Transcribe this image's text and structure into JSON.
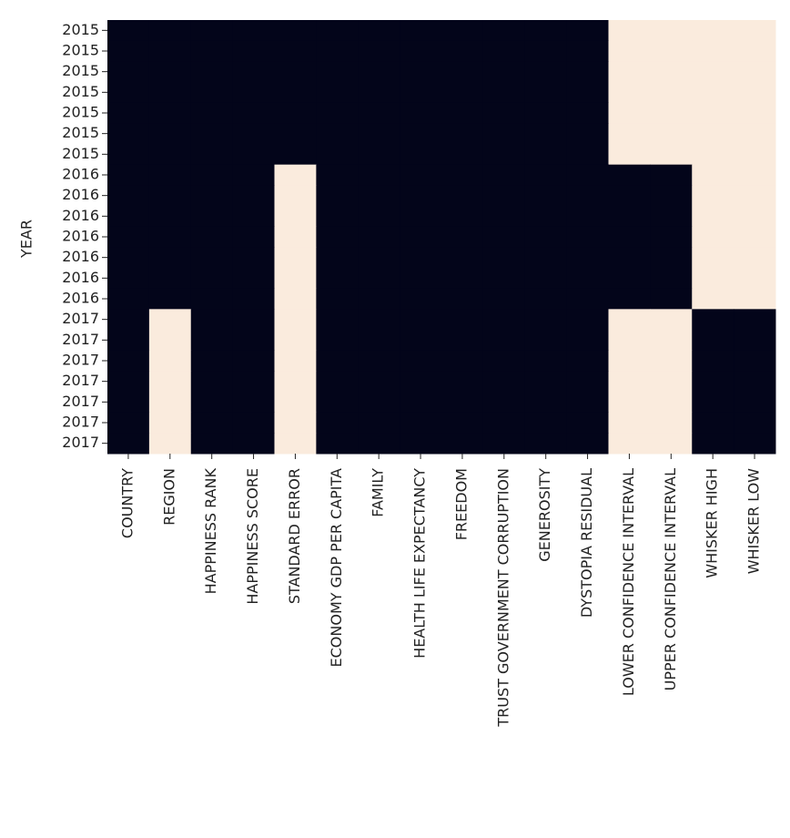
{
  "chart_data": {
    "type": "heatmap",
    "y_label": "YEAR",
    "rows": [
      "2015",
      "2015",
      "2015",
      "2015",
      "2015",
      "2015",
      "2015",
      "2016",
      "2016",
      "2016",
      "2016",
      "2016",
      "2016",
      "2016",
      "2017",
      "2017",
      "2017",
      "2017",
      "2017",
      "2017",
      "2017"
    ],
    "columns": [
      "COUNTRY",
      "REGION",
      "HAPPINESS RANK",
      "HAPPINESS SCORE",
      "STANDARD ERROR",
      "ECONOMY GDP PER CAPITA",
      "FAMILY",
      "HEALTH LIFE EXPECTANCY",
      "FREEDOM",
      "TRUST GOVERNMENT CORRUPTION",
      "GENEROSITY",
      "DYSTOPIA RESIDUAL",
      "LOWER CONFIDENCE INTERVAL",
      "UPPER CONFIDENCE INTERVAL",
      "WHISKER HIGH",
      "WHISKER LOW"
    ],
    "values": [
      [
        0,
        0,
        0,
        0,
        0,
        0,
        0,
        0,
        0,
        0,
        0,
        0,
        1,
        1,
        1,
        1
      ],
      [
        0,
        0,
        0,
        0,
        0,
        0,
        0,
        0,
        0,
        0,
        0,
        0,
        1,
        1,
        1,
        1
      ],
      [
        0,
        0,
        0,
        0,
        0,
        0,
        0,
        0,
        0,
        0,
        0,
        0,
        1,
        1,
        1,
        1
      ],
      [
        0,
        0,
        0,
        0,
        0,
        0,
        0,
        0,
        0,
        0,
        0,
        0,
        1,
        1,
        1,
        1
      ],
      [
        0,
        0,
        0,
        0,
        0,
        0,
        0,
        0,
        0,
        0,
        0,
        0,
        1,
        1,
        1,
        1
      ],
      [
        0,
        0,
        0,
        0,
        0,
        0,
        0,
        0,
        0,
        0,
        0,
        0,
        1,
        1,
        1,
        1
      ],
      [
        0,
        0,
        0,
        0,
        0,
        0,
        0,
        0,
        0,
        0,
        0,
        0,
        1,
        1,
        1,
        1
      ],
      [
        0,
        0,
        0,
        0,
        1,
        0,
        0,
        0,
        0,
        0,
        0,
        0,
        0,
        0,
        1,
        1
      ],
      [
        0,
        0,
        0,
        0,
        1,
        0,
        0,
        0,
        0,
        0,
        0,
        0,
        0,
        0,
        1,
        1
      ],
      [
        0,
        0,
        0,
        0,
        1,
        0,
        0,
        0,
        0,
        0,
        0,
        0,
        0,
        0,
        1,
        1
      ],
      [
        0,
        0,
        0,
        0,
        1,
        0,
        0,
        0,
        0,
        0,
        0,
        0,
        0,
        0,
        1,
        1
      ],
      [
        0,
        0,
        0,
        0,
        1,
        0,
        0,
        0,
        0,
        0,
        0,
        0,
        0,
        0,
        1,
        1
      ],
      [
        0,
        0,
        0,
        0,
        1,
        0,
        0,
        0,
        0,
        0,
        0,
        0,
        0,
        0,
        1,
        1
      ],
      [
        0,
        0,
        0,
        0,
        1,
        0,
        0,
        0,
        0,
        0,
        0,
        0,
        0,
        0,
        1,
        1
      ],
      [
        0,
        1,
        0,
        0,
        1,
        0,
        0,
        0,
        0,
        0,
        0,
        0,
        1,
        1,
        0,
        0
      ],
      [
        0,
        1,
        0,
        0,
        1,
        0,
        0,
        0,
        0,
        0,
        0,
        0,
        1,
        1,
        0,
        0
      ],
      [
        0,
        1,
        0,
        0,
        1,
        0,
        0,
        0,
        0,
        0,
        0,
        0,
        1,
        1,
        0,
        0
      ],
      [
        0,
        1,
        0,
        0,
        1,
        0,
        0,
        0,
        0,
        0,
        0,
        0,
        1,
        1,
        0,
        0
      ],
      [
        0,
        1,
        0,
        0,
        1,
        0,
        0,
        0,
        0,
        0,
        0,
        0,
        1,
        1,
        0,
        0
      ],
      [
        0,
        1,
        0,
        0,
        1,
        0,
        0,
        0,
        0,
        0,
        0,
        0,
        1,
        1,
        0,
        0
      ],
      [
        0,
        1,
        0,
        0,
        1,
        0,
        0,
        0,
        0,
        0,
        0,
        0,
        1,
        1,
        0,
        0
      ]
    ],
    "colors": [
      "#03051a",
      "#faebdd"
    ]
  }
}
